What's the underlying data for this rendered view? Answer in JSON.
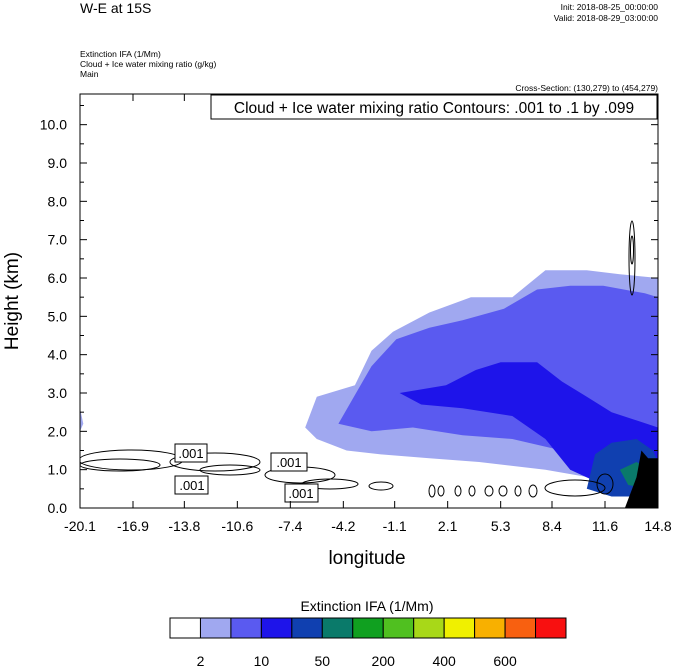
{
  "header": {
    "title": "W-E at 15S",
    "init": "Init: 2018-08-25_00:00:00",
    "valid": "Valid: 2018-08-29_03:00:00",
    "fields": [
      "Extinction IFA   (1/Mm)",
      "Cloud + Ice water mixing ratio   (g/kg)",
      "Main"
    ],
    "cross_section": "Cross-Section: (130,279) to (454,279)"
  },
  "chart_data": {
    "type": "heatmap",
    "title": "Cloud + Ice water mixing ratio Contours: .001 to .1 by .099",
    "xlabel": "longitude",
    "ylabel": "Height (km)",
    "xlim": [
      -20.1,
      14.8
    ],
    "ylim": [
      0.0,
      10.8
    ],
    "x_ticks": [
      "-20.1",
      "-16.9",
      "-13.8",
      "-10.6",
      "-7.4",
      "-4.2",
      "-1.1",
      "2.1",
      "5.3",
      "8.4",
      "11.6",
      "14.8"
    ],
    "y_ticks": [
      "0.0",
      "1.0",
      "2.0",
      "3.0",
      "4.0",
      "5.0",
      "6.0",
      "7.0",
      "8.0",
      "9.0",
      "10.0"
    ],
    "contour_labels": [
      ".001",
      ".001",
      ".001",
      ".001"
    ],
    "colorbar": {
      "title": "Extinction IFA  (1/Mm)",
      "colors": [
        "#ffffff",
        "#a0a8f0",
        "#5a5af0",
        "#1e14ea",
        "#1040b0",
        "#0a7a6a",
        "#10a020",
        "#50c020",
        "#a8d818",
        "#f0f000",
        "#f8b000",
        "#f86010",
        "#f81010"
      ],
      "tick_labels": [
        "2",
        "10",
        "50",
        "200",
        "400",
        "600"
      ]
    },
    "filled_regions": [
      {
        "name": "light",
        "color": "#a0a8f0",
        "points": [
          [
            -6.5,
            2.1
          ],
          [
            -5.8,
            2.9
          ],
          [
            -3.5,
            3.2
          ],
          [
            -2.5,
            4.1
          ],
          [
            -1.2,
            4.6
          ],
          [
            1.0,
            5.1
          ],
          [
            3.5,
            5.5
          ],
          [
            6.0,
            5.5
          ],
          [
            8.0,
            6.2
          ],
          [
            10.5,
            6.2
          ],
          [
            12.5,
            6.1
          ],
          [
            14.8,
            6.0
          ],
          [
            14.8,
            0.6
          ],
          [
            12.0,
            0.7
          ],
          [
            8.0,
            1.0
          ],
          [
            4.0,
            1.2
          ],
          [
            1.0,
            1.3
          ],
          [
            -2.0,
            1.4
          ],
          [
            -4.0,
            1.5
          ],
          [
            -5.8,
            1.8
          ]
        ]
      },
      {
        "name": "light-left",
        "color": "#a0a8f0",
        "points": [
          [
            -20.1,
            2.6
          ],
          [
            -19.9,
            2.2
          ],
          [
            -20.1,
            2.0
          ]
        ]
      },
      {
        "name": "medium",
        "color": "#5a5af0",
        "points": [
          [
            -4.5,
            2.2
          ],
          [
            -2.5,
            3.7
          ],
          [
            -1.0,
            4.4
          ],
          [
            1.0,
            4.7
          ],
          [
            3.0,
            4.9
          ],
          [
            5.5,
            5.2
          ],
          [
            7.5,
            5.7
          ],
          [
            9.5,
            5.8
          ],
          [
            11.5,
            5.8
          ],
          [
            14.0,
            5.6
          ],
          [
            14.8,
            5.5
          ],
          [
            14.8,
            1.0
          ],
          [
            12.0,
            1.0
          ],
          [
            9.0,
            1.5
          ],
          [
            6.0,
            1.8
          ],
          [
            3.0,
            1.9
          ],
          [
            0.0,
            2.1
          ],
          [
            -2.5,
            2.0
          ]
        ]
      },
      {
        "name": "dark",
        "color": "#1e14ea",
        "points": [
          [
            -0.8,
            3.0
          ],
          [
            2.0,
            3.2
          ],
          [
            3.8,
            3.6
          ],
          [
            5.3,
            3.8
          ],
          [
            7.5,
            3.8
          ],
          [
            9.0,
            3.3
          ],
          [
            10.5,
            2.9
          ],
          [
            12.0,
            2.5
          ],
          [
            14.8,
            2.1
          ],
          [
            14.8,
            0.8
          ],
          [
            11.5,
            0.6
          ],
          [
            9.5,
            1.0
          ],
          [
            8.0,
            1.8
          ],
          [
            6.0,
            2.4
          ],
          [
            3.0,
            2.6
          ],
          [
            0.5,
            2.7
          ]
        ]
      },
      {
        "name": "teal",
        "color": "#1040b0",
        "points": [
          [
            11.0,
            1.4
          ],
          [
            12.0,
            1.7
          ],
          [
            13.5,
            1.8
          ],
          [
            14.5,
            1.5
          ],
          [
            14.8,
            1.2
          ],
          [
            14.8,
            0.3
          ],
          [
            12.0,
            0.3
          ],
          [
            10.5,
            0.5
          ]
        ]
      },
      {
        "name": "green",
        "color": "#0a7a6a",
        "points": [
          [
            12.5,
            1.0
          ],
          [
            13.5,
            1.2
          ],
          [
            14.3,
            1.0
          ],
          [
            14.3,
            0.5
          ],
          [
            13.0,
            0.6
          ]
        ]
      },
      {
        "name": "terrain",
        "color": "#000000",
        "points": [
          [
            12.8,
            0.0
          ],
          [
            13.5,
            0.8
          ],
          [
            13.8,
            1.5
          ],
          [
            14.2,
            1.3
          ],
          [
            14.8,
            1.3
          ],
          [
            14.8,
            0.0
          ]
        ]
      }
    ]
  }
}
